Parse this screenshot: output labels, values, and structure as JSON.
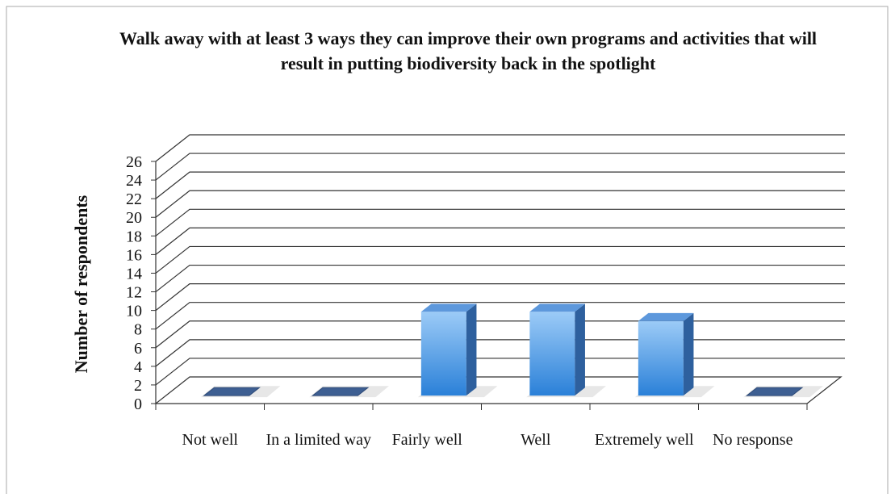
{
  "chart_data": {
    "type": "bar3d",
    "title": "Walk away with at least 3 ways they can improve their own programs and activities that will result in putting biodiversity back in the spotlight",
    "y_label": "Number of respondents",
    "categories": [
      "Not well",
      "In a limited way",
      "Fairly well",
      "Well",
      "Extremely well",
      "No response"
    ],
    "values": [
      0,
      0,
      9,
      9,
      8,
      0
    ],
    "color": "#3b8ae0",
    "ylim": [
      0,
      26
    ],
    "yticks": [
      0,
      2,
      4,
      6,
      8,
      10,
      12,
      14,
      16,
      18,
      20,
      22,
      24,
      26
    ],
    "grid": true
  }
}
